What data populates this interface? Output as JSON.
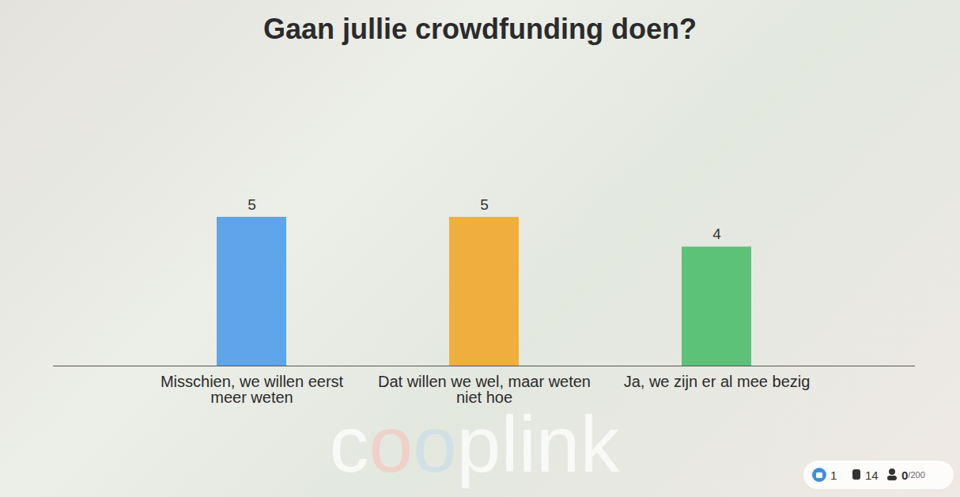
{
  "chart_data": {
    "type": "bar",
    "title": "Gaan jullie crowdfunding doen?",
    "categories": [
      "Misschien, we willen eerst meer weten",
      "Dat willen we wel, maar weten niet hoe",
      "Ja, we zijn er al mee bezig"
    ],
    "values": [
      5,
      5,
      4
    ],
    "colors": [
      "#5ea5ea",
      "#f0ae3c",
      "#5cc277"
    ],
    "ylim": [
      0,
      5
    ],
    "yticks": [],
    "data_labels": true,
    "tick_labels": "x",
    "grid": false,
    "watermark": "cooplink",
    "footer": [
      "1",
      "14",
      "0/200"
    ]
  }
}
